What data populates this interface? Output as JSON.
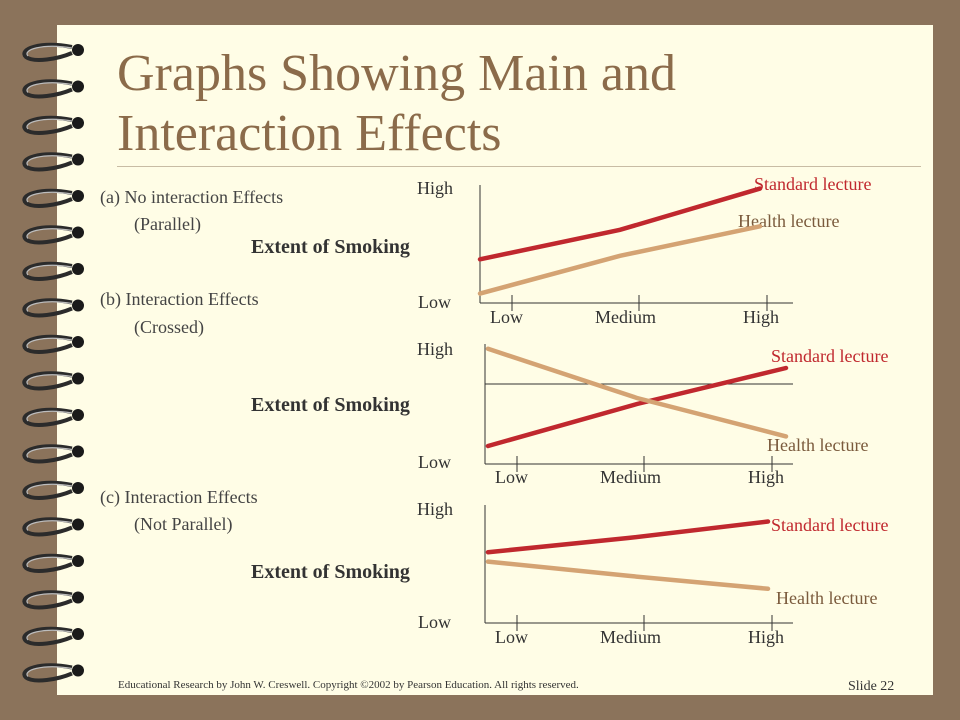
{
  "slide": {
    "title_line1": "Graphs Showing Main and",
    "title_line2": "Interaction Effects",
    "footer": "Educational Research by John W. Creswell.   Copyright ©2002 by Pearson Education.  All rights reserved.",
    "slide_number": "Slide 22",
    "conditions": {
      "a_line1": "(a)  No interaction Effects",
      "a_line2": "(Parallel)",
      "b_line1": "(b)  Interaction Effects",
      "b_line2": "(Crossed)",
      "c_line1": "(c)  Interaction Effects",
      "c_line2": "(Not Parallel)"
    }
  },
  "colors": {
    "background": "#8b735b",
    "slide": "#fffde6",
    "title": "#8b6b4a",
    "standard_lecture": "#c0282e",
    "health_lecture": "#d4a373"
  },
  "chart_data": [
    {
      "type": "line",
      "ylabel": "Extent of Smoking",
      "y_ticks": [
        "Low",
        "High"
      ],
      "categories": [
        "Low",
        "Medium",
        "High"
      ],
      "ylim": [
        0,
        1
      ],
      "grid": false,
      "series": [
        {
          "name": "Standard lecture",
          "values": [
            0.37,
            0.62,
            0.97
          ]
        },
        {
          "name": "Health lecture",
          "values": [
            0.08,
            0.4,
            0.65
          ]
        }
      ]
    },
    {
      "type": "line",
      "ylabel": "Extent of Smoking",
      "y_ticks": [
        "Low",
        "High"
      ],
      "categories": [
        "Low",
        "Medium",
        "High"
      ],
      "ylim": [
        0,
        1
      ],
      "grid": false,
      "series": [
        {
          "name": "Standard lecture",
          "values": [
            0.15,
            0.5,
            0.8
          ]
        },
        {
          "name": "Health lecture",
          "values": [
            0.96,
            0.55,
            0.23
          ]
        }
      ]
    },
    {
      "type": "line",
      "ylabel": "Extent of Smoking",
      "y_ticks": [
        "Low",
        "High"
      ],
      "categories": [
        "Low",
        "Medium",
        "High"
      ],
      "ylim": [
        0,
        1
      ],
      "grid": false,
      "series": [
        {
          "name": "Standard lecture",
          "values": [
            0.6,
            0.72,
            0.86
          ]
        },
        {
          "name": "Health lecture",
          "values": [
            0.52,
            0.4,
            0.29
          ]
        }
      ]
    }
  ]
}
